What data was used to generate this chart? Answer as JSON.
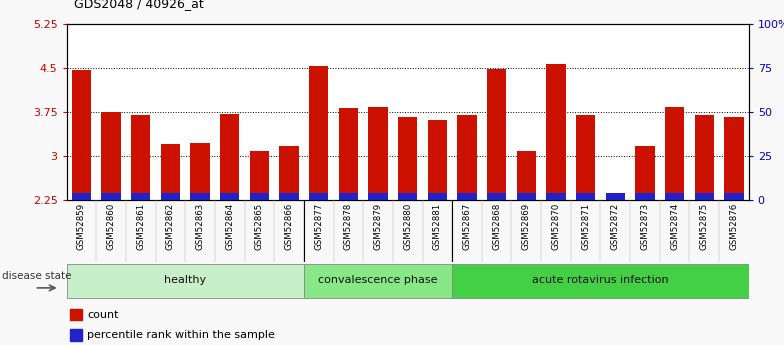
{
  "title": "GDS2048 / 40926_at",
  "samples": [
    "GSM52859",
    "GSM52860",
    "GSM52861",
    "GSM52862",
    "GSM52863",
    "GSM52864",
    "GSM52865",
    "GSM52866",
    "GSM52877",
    "GSM52878",
    "GSM52879",
    "GSM52880",
    "GSM52881",
    "GSM52867",
    "GSM52868",
    "GSM52869",
    "GSM52870",
    "GSM52871",
    "GSM52872",
    "GSM52873",
    "GSM52874",
    "GSM52875",
    "GSM52876"
  ],
  "counts": [
    4.47,
    3.75,
    3.7,
    3.2,
    3.22,
    3.72,
    3.08,
    3.18,
    4.53,
    3.82,
    3.84,
    3.67,
    3.62,
    3.7,
    4.48,
    3.09,
    4.57,
    3.7,
    2.36,
    3.17,
    3.84,
    3.7,
    3.67
  ],
  "percentiles": [
    4,
    4,
    4,
    4,
    4,
    4,
    4,
    4,
    4,
    4,
    4,
    4,
    4,
    4,
    4,
    4,
    4,
    4,
    4,
    4,
    4,
    4,
    4
  ],
  "groups": [
    {
      "label": "healthy",
      "start": 0,
      "end": 8
    },
    {
      "label": "convalescence phase",
      "start": 8,
      "end": 13
    },
    {
      "label": "acute rotavirus infection",
      "start": 13,
      "end": 23
    }
  ],
  "group_colors": [
    "#c8f0c8",
    "#88e888",
    "#44d044"
  ],
  "ylim_left": [
    2.25,
    5.25
  ],
  "ylim_right": [
    0,
    100
  ],
  "yticks_left": [
    2.25,
    3.0,
    3.75,
    4.5,
    5.25
  ],
  "ytick_labels_left": [
    "2.25",
    "3",
    "3.75",
    "4.5",
    "5.25"
  ],
  "yticks_right": [
    0,
    25,
    50,
    75,
    100
  ],
  "ytick_labels_right": [
    "0",
    "25",
    "50",
    "75",
    "100%"
  ],
  "bar_color": "#cc1100",
  "percentile_color": "#2222cc",
  "fig_bg": "#f8f8f8",
  "plot_bg": "#ffffff",
  "legend_count_label": "count",
  "legend_pct_label": "percentile rank within the sample",
  "disease_state_label": "disease state",
  "title_color": "#000000",
  "left_tick_color": "#cc0000",
  "right_tick_color": "#0000cc",
  "xtick_bg": "#d8d8d8",
  "grid_color": "#000000",
  "grid_linestyle": ":",
  "grid_linewidth": 0.7,
  "bar_width": 0.65
}
